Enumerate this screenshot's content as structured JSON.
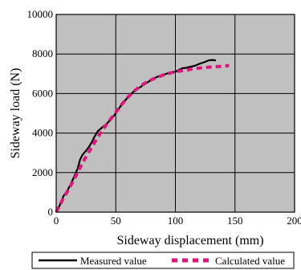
{
  "chart_data": {
    "type": "line",
    "title": "",
    "xlabel": "Sideway displacement (mm)",
    "ylabel": "Sideway load (N)",
    "xlim": [
      0,
      200
    ],
    "ylim": [
      0,
      10000
    ],
    "xticks": [
      0,
      50,
      100,
      150,
      200
    ],
    "yticks": [
      0,
      2000,
      4000,
      6000,
      8000,
      10000
    ],
    "xtick_labels": [
      "0",
      "50",
      "100",
      "150",
      "200"
    ],
    "ytick_labels": [
      "0",
      "2000",
      "4000",
      "6000",
      "8000",
      "10000"
    ],
    "grid": true,
    "plot_background": "#c0c0c0",
    "legend_position": "bottom",
    "series": [
      {
        "name": "Measured value",
        "color": "#000000",
        "style": "solid",
        "x": [
          0,
          3,
          6,
          10,
          14,
          18,
          20,
          22,
          25,
          28,
          30,
          32,
          35,
          38,
          42,
          46,
          50,
          55,
          60,
          65,
          70,
          75,
          80,
          85,
          90,
          95,
          100,
          103,
          106,
          109,
          112,
          116,
          120,
          124,
          128,
          131,
          134
        ],
        "y": [
          0,
          350,
          800,
          1150,
          1650,
          2200,
          2650,
          2900,
          3100,
          3350,
          3550,
          3800,
          4100,
          4250,
          4450,
          4700,
          5000,
          5450,
          5800,
          6100,
          6300,
          6500,
          6700,
          6850,
          6950,
          7050,
          7100,
          7200,
          7280,
          7300,
          7350,
          7400,
          7500,
          7580,
          7680,
          7700,
          7680
        ]
      },
      {
        "name": "Calculated value",
        "color": "#e0157a",
        "style": "dashed",
        "x": [
          0,
          3,
          6,
          10,
          15,
          20,
          25,
          30,
          35,
          40,
          45,
          50,
          55,
          60,
          65,
          70,
          75,
          80,
          85,
          90,
          95,
          100,
          105,
          110,
          115,
          120,
          125,
          130,
          135,
          140,
          145
        ],
        "y": [
          0,
          350,
          700,
          1100,
          1650,
          2250,
          2800,
          3300,
          3800,
          4250,
          4650,
          5050,
          5450,
          5800,
          6100,
          6350,
          6550,
          6700,
          6830,
          6940,
          7030,
          7100,
          7150,
          7200,
          7250,
          7290,
          7320,
          7340,
          7360,
          7380,
          7420
        ]
      }
    ]
  }
}
